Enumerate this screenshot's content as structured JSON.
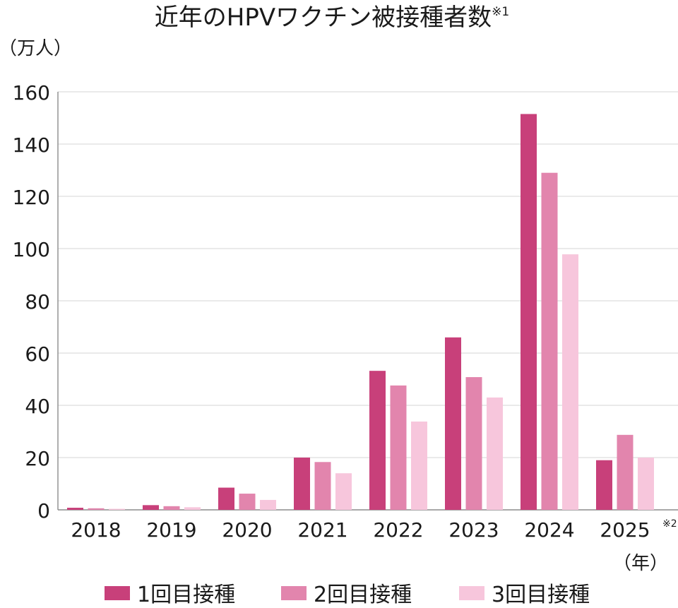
{
  "chart_data": {
    "type": "bar",
    "title": "近年のHPVワクチン被接種者数",
    "title_note": "※1",
    "ylabel": "（万人）",
    "xlabel": "（年）",
    "ylim": [
      0,
      160
    ],
    "yticks": [
      "0",
      "20",
      "40",
      "60",
      "80",
      "100",
      "120",
      "140",
      "160"
    ],
    "categories": [
      "2018",
      "2019",
      "2020",
      "2021",
      "2022",
      "2023",
      "2024",
      "2025"
    ],
    "category_notes": [
      "",
      "",
      "",
      "",
      "",
      "",
      "",
      "※2"
    ],
    "series": [
      {
        "name": "1回目接種",
        "color": "#c8407a",
        "values": [
          0.8,
          1.8,
          8.5,
          20,
          53.2,
          66,
          151.5,
          19
        ]
      },
      {
        "name": "2回目接種",
        "color": "#e285ad",
        "values": [
          0.6,
          1.4,
          6.2,
          18.3,
          47.6,
          50.8,
          129,
          28.7
        ]
      },
      {
        "name": "3回目接種",
        "color": "#f7c6dc",
        "values": [
          0.4,
          1.0,
          3.8,
          14,
          33.8,
          43,
          97.8,
          20
        ]
      }
    ],
    "grid": true,
    "legend_position": "bottom"
  }
}
